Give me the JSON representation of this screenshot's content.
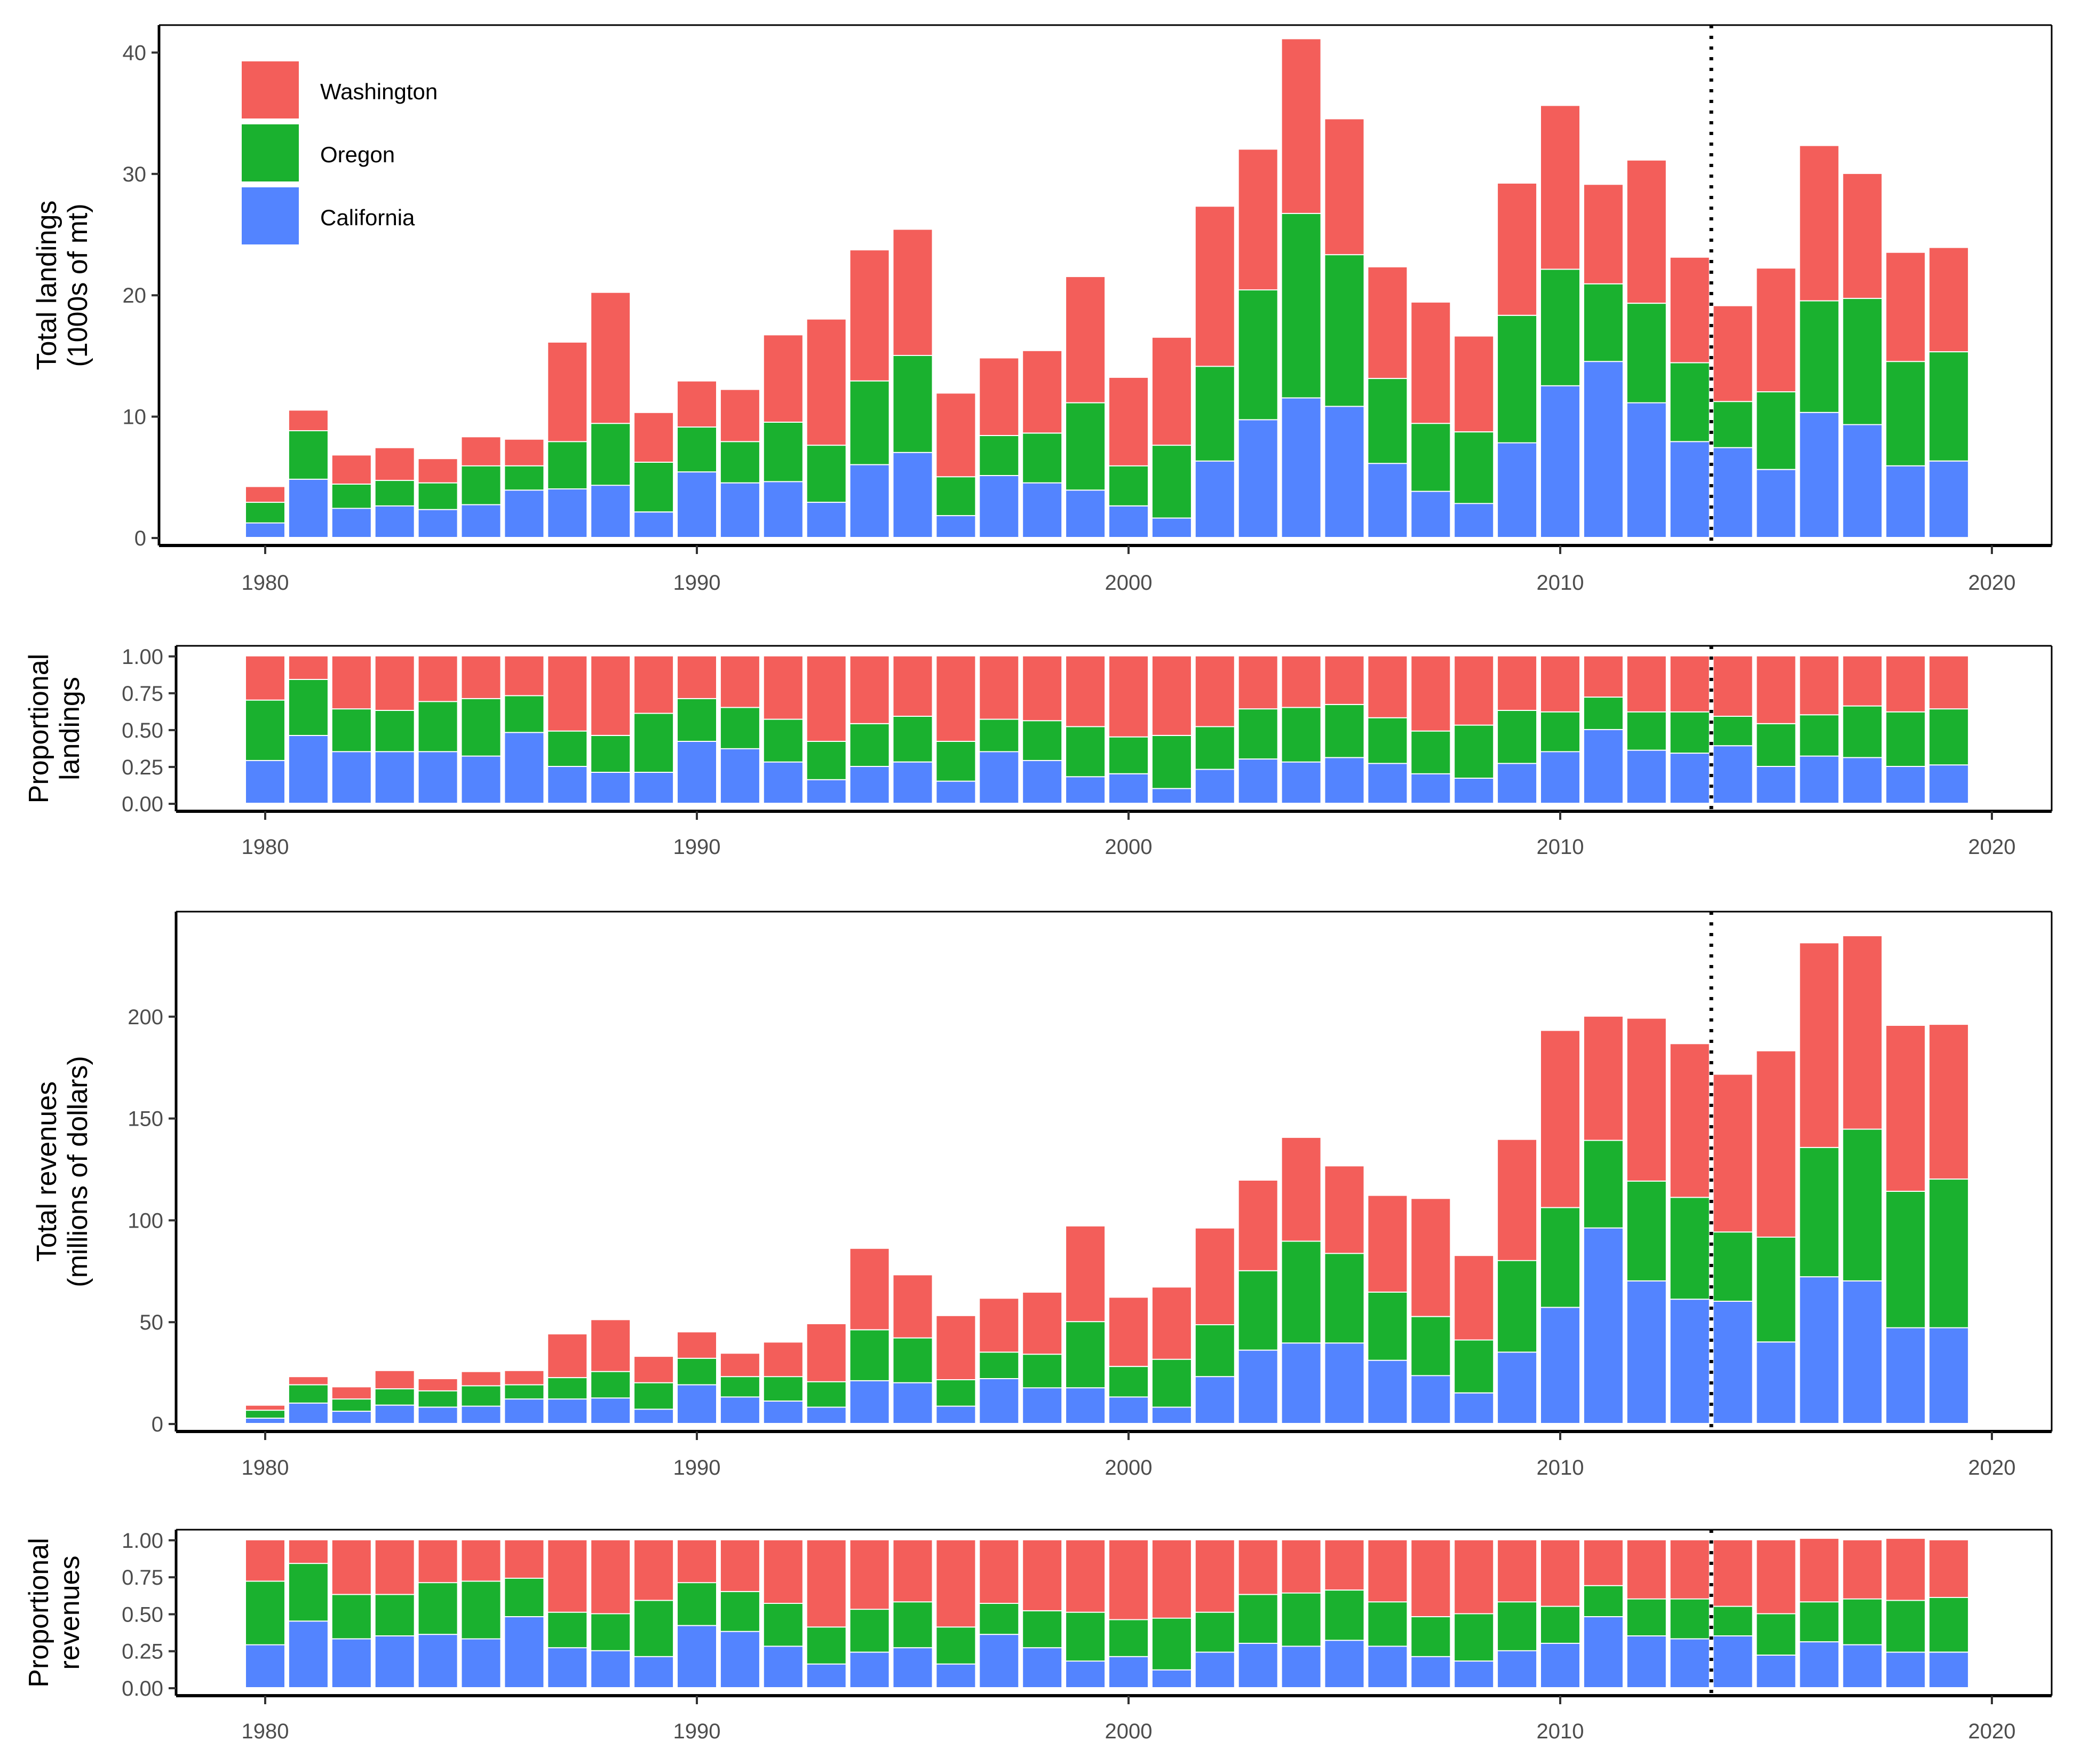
{
  "chart_data": [
    {
      "id": "landings",
      "type": "bar",
      "stacked": true,
      "ylabel_lines": [
        "Total landings",
        "(1000s of mt)"
      ],
      "xlabel": "",
      "ylim": [
        0,
        42
      ],
      "yticks": [
        0,
        10,
        20,
        30,
        40
      ],
      "ytick_labels": [
        "0",
        "10",
        "20",
        "30",
        "40"
      ],
      "xticks": [
        1980,
        1990,
        2000,
        2010,
        2020
      ],
      "xtick_labels": [
        "1980",
        "1990",
        "2000",
        "2010",
        "2020"
      ],
      "vline_x": 2013.5,
      "legend_position": "top-left",
      "categories": [
        1980,
        1981,
        1982,
        1983,
        1984,
        1985,
        1986,
        1987,
        1988,
        1989,
        1990,
        1991,
        1992,
        1993,
        1994,
        1995,
        1996,
        1997,
        1998,
        1999,
        2000,
        2001,
        2002,
        2003,
        2004,
        2005,
        2006,
        2007,
        2008,
        2009,
        2010,
        2011,
        2012,
        2013,
        2014,
        2015,
        2016,
        2017,
        2018,
        2019
      ],
      "series": [
        {
          "name": "California",
          "values": [
            1.2,
            4.8,
            2.4,
            2.6,
            2.3,
            2.7,
            3.9,
            4.0,
            4.3,
            2.1,
            5.4,
            4.5,
            4.6,
            2.9,
            6.0,
            7.0,
            1.8,
            5.1,
            4.5,
            3.9,
            2.6,
            1.6,
            6.3,
            9.7,
            11.5,
            10.8,
            6.1,
            3.8,
            2.8,
            7.8,
            12.5,
            14.5,
            11.1,
            7.9,
            7.4,
            5.6,
            10.3,
            9.3,
            5.9,
            6.3
          ]
        },
        {
          "name": "Oregon",
          "values": [
            1.7,
            4.0,
            2.0,
            2.1,
            2.2,
            3.2,
            2.0,
            3.9,
            5.1,
            4.1,
            3.7,
            3.4,
            4.9,
            4.7,
            6.9,
            8.0,
            3.2,
            3.3,
            4.1,
            7.2,
            3.3,
            6.0,
            7.8,
            10.7,
            15.2,
            12.5,
            7.0,
            5.6,
            5.9,
            10.5,
            9.6,
            6.4,
            8.2,
            6.5,
            3.8,
            6.4,
            9.2,
            10.4,
            8.6,
            9.0
          ]
        },
        {
          "name": "Washington",
          "values": [
            1.3,
            1.7,
            2.4,
            2.7,
            2.0,
            2.4,
            2.2,
            8.2,
            10.8,
            4.1,
            3.8,
            4.3,
            7.2,
            10.4,
            10.8,
            10.4,
            6.9,
            6.4,
            6.8,
            10.4,
            7.3,
            8.9,
            13.2,
            11.6,
            14.4,
            11.2,
            9.2,
            10.0,
            7.9,
            10.9,
            13.5,
            8.2,
            11.8,
            8.7,
            7.9,
            10.2,
            12.8,
            10.3,
            9.0,
            8.6
          ]
        }
      ]
    },
    {
      "id": "proportional-landings",
      "type": "bar",
      "stacked": true,
      "ylabel_lines": [
        "Proportional",
        "landings"
      ],
      "xlabel": "",
      "ylim": [
        0,
        1.05
      ],
      "yticks": [
        0,
        0.25,
        0.5,
        0.75,
        1.0
      ],
      "ytick_labels": [
        "0.00",
        "0.25",
        "0.50",
        "0.75",
        "1.00"
      ],
      "xticks": [
        1980,
        1990,
        2000,
        2010,
        2020
      ],
      "xtick_labels": [
        "1980",
        "1990",
        "2000",
        "2010",
        "2020"
      ],
      "vline_x": 2013.5,
      "categories": [
        1980,
        1981,
        1982,
        1983,
        1984,
        1985,
        1986,
        1987,
        1988,
        1989,
        1990,
        1991,
        1992,
        1993,
        1994,
        1995,
        1996,
        1997,
        1998,
        1999,
        2000,
        2001,
        2002,
        2003,
        2004,
        2005,
        2006,
        2007,
        2008,
        2009,
        2010,
        2011,
        2012,
        2013,
        2014,
        2015,
        2016,
        2017,
        2018,
        2019
      ],
      "series": [
        {
          "name": "California",
          "values": [
            0.29,
            0.46,
            0.35,
            0.35,
            0.35,
            0.32,
            0.48,
            0.25,
            0.21,
            0.21,
            0.42,
            0.37,
            0.28,
            0.16,
            0.25,
            0.28,
            0.15,
            0.35,
            0.29,
            0.18,
            0.2,
            0.1,
            0.23,
            0.3,
            0.28,
            0.31,
            0.27,
            0.2,
            0.17,
            0.27,
            0.35,
            0.5,
            0.36,
            0.34,
            0.39,
            0.25,
            0.32,
            0.31,
            0.25,
            0.26
          ]
        },
        {
          "name": "Oregon",
          "values": [
            0.41,
            0.38,
            0.29,
            0.28,
            0.34,
            0.39,
            0.25,
            0.24,
            0.25,
            0.4,
            0.29,
            0.28,
            0.29,
            0.26,
            0.29,
            0.31,
            0.27,
            0.22,
            0.27,
            0.34,
            0.25,
            0.36,
            0.29,
            0.34,
            0.37,
            0.36,
            0.31,
            0.29,
            0.36,
            0.36,
            0.27,
            0.22,
            0.26,
            0.28,
            0.2,
            0.29,
            0.28,
            0.35,
            0.37,
            0.38
          ]
        },
        {
          "name": "Washington",
          "values": [
            0.3,
            0.16,
            0.36,
            0.37,
            0.31,
            0.29,
            0.27,
            0.51,
            0.54,
            0.39,
            0.29,
            0.35,
            0.43,
            0.58,
            0.46,
            0.41,
            0.58,
            0.43,
            0.44,
            0.48,
            0.55,
            0.54,
            0.48,
            0.36,
            0.35,
            0.33,
            0.42,
            0.51,
            0.47,
            0.37,
            0.38,
            0.28,
            0.38,
            0.38,
            0.41,
            0.46,
            0.4,
            0.34,
            0.38,
            0.36
          ]
        }
      ]
    },
    {
      "id": "revenues",
      "type": "bar",
      "stacked": true,
      "ylabel_lines": [
        "Total revenues",
        "(millions of dollars)"
      ],
      "xlabel": "",
      "ylim": [
        0,
        250
      ],
      "yticks": [
        0,
        50,
        100,
        150,
        200
      ],
      "ytick_labels": [
        "0",
        "50",
        "100",
        "150",
        "200"
      ],
      "xticks": [
        1980,
        1990,
        2000,
        2010,
        2020
      ],
      "xtick_labels": [
        "1980",
        "1990",
        "2000",
        "2010",
        "2020"
      ],
      "vline_x": 2013.5,
      "categories": [
        1980,
        1981,
        1982,
        1983,
        1984,
        1985,
        1986,
        1987,
        1988,
        1989,
        1990,
        1991,
        1992,
        1993,
        1994,
        1995,
        1996,
        1997,
        1998,
        1999,
        2000,
        2001,
        2002,
        2003,
        2004,
        2005,
        2006,
        2007,
        2008,
        2009,
        2010,
        2011,
        2012,
        2013,
        2014,
        2015,
        2016,
        2017,
        2018,
        2019
      ],
      "series": [
        {
          "name": "California",
          "values": [
            2.6,
            10.0,
            6.0,
            9.0,
            8.0,
            8.5,
            12.0,
            12.0,
            12.5,
            7.0,
            19.0,
            13.0,
            11.0,
            8.0,
            21.0,
            20.0,
            8.5,
            22.0,
            17.5,
            17.5,
            13.0,
            8.0,
            23.0,
            36.0,
            39.5,
            39.5,
            31.0,
            23.5,
            15.0,
            35.0,
            57.0,
            96.0,
            70.0,
            61.0,
            60.0,
            40.0,
            72.0,
            70.0,
            47.0,
            47.0
          ]
        },
        {
          "name": "Oregon",
          "values": [
            3.9,
            9.0,
            6.0,
            8.0,
            8.0,
            10.0,
            7.0,
            10.5,
            13.0,
            13.0,
            13.0,
            10.0,
            12.0,
            12.5,
            25.0,
            22.0,
            13.0,
            13.0,
            16.5,
            32.5,
            15.0,
            23.5,
            25.5,
            39.0,
            50.0,
            44.0,
            33.5,
            29.0,
            26.0,
            45.0,
            49.0,
            43.0,
            49.0,
            50.0,
            34.0,
            51.5,
            63.5,
            74.5,
            67.0,
            73.0
          ]
        },
        {
          "name": "Washington",
          "values": [
            2.5,
            4.0,
            6.0,
            9.0,
            6.0,
            7.0,
            7.0,
            21.5,
            25.5,
            13.0,
            13.0,
            11.5,
            17.0,
            28.5,
            40.0,
            31.0,
            31.5,
            26.5,
            30.5,
            47.0,
            34.0,
            35.5,
            47.5,
            44.5,
            51.0,
            43.0,
            47.5,
            58.0,
            41.5,
            59.5,
            87.0,
            61.0,
            80.0,
            75.5,
            77.5,
            91.5,
            100.5,
            95.0,
            81.5,
            76.0
          ]
        }
      ]
    },
    {
      "id": "proportional-revenues",
      "type": "bar",
      "stacked": true,
      "ylabel_lines": [
        "Proportional",
        "revenues"
      ],
      "xlabel": "",
      "ylim": [
        0,
        1.05
      ],
      "yticks": [
        0,
        0.25,
        0.5,
        0.75,
        1.0
      ],
      "ytick_labels": [
        "0.00",
        "0.25",
        "0.50",
        "0.75",
        "1.00"
      ],
      "xticks": [
        1980,
        1990,
        2000,
        2010,
        2020
      ],
      "xtick_labels": [
        "1980",
        "1990",
        "2000",
        "2010",
        "2020"
      ],
      "vline_x": 2013.5,
      "categories": [
        1980,
        1981,
        1982,
        1983,
        1984,
        1985,
        1986,
        1987,
        1988,
        1989,
        1990,
        1991,
        1992,
        1993,
        1994,
        1995,
        1996,
        1997,
        1998,
        1999,
        2000,
        2001,
        2002,
        2003,
        2004,
        2005,
        2006,
        2007,
        2008,
        2009,
        2010,
        2011,
        2012,
        2013,
        2014,
        2015,
        2016,
        2017,
        2018,
        2019
      ],
      "series": [
        {
          "name": "California",
          "values": [
            0.29,
            0.45,
            0.33,
            0.35,
            0.36,
            0.33,
            0.48,
            0.27,
            0.25,
            0.21,
            0.42,
            0.38,
            0.28,
            0.16,
            0.24,
            0.27,
            0.16,
            0.36,
            0.27,
            0.18,
            0.21,
            0.12,
            0.24,
            0.3,
            0.28,
            0.32,
            0.28,
            0.21,
            0.18,
            0.25,
            0.3,
            0.48,
            0.35,
            0.33,
            0.35,
            0.22,
            0.31,
            0.29,
            0.24,
            0.24
          ]
        },
        {
          "name": "Oregon",
          "values": [
            0.43,
            0.39,
            0.3,
            0.28,
            0.35,
            0.39,
            0.26,
            0.24,
            0.25,
            0.38,
            0.29,
            0.27,
            0.29,
            0.25,
            0.29,
            0.31,
            0.25,
            0.21,
            0.25,
            0.33,
            0.25,
            0.35,
            0.27,
            0.33,
            0.36,
            0.34,
            0.3,
            0.27,
            0.32,
            0.33,
            0.25,
            0.21,
            0.25,
            0.27,
            0.2,
            0.28,
            0.27,
            0.31,
            0.35,
            0.37
          ]
        },
        {
          "name": "Washington",
          "values": [
            0.28,
            0.16,
            0.37,
            0.37,
            0.29,
            0.28,
            0.26,
            0.49,
            0.5,
            0.41,
            0.29,
            0.35,
            0.43,
            0.59,
            0.47,
            0.42,
            0.59,
            0.43,
            0.48,
            0.49,
            0.54,
            0.53,
            0.49,
            0.37,
            0.36,
            0.34,
            0.42,
            0.52,
            0.5,
            0.42,
            0.45,
            0.31,
            0.4,
            0.4,
            0.45,
            0.5,
            0.43,
            0.4,
            0.42,
            0.39
          ]
        }
      ]
    }
  ],
  "legend": {
    "items": [
      {
        "name": "Washington",
        "color": "#F35E5A"
      },
      {
        "name": "Oregon",
        "color": "#1AB12F"
      },
      {
        "name": "California",
        "color": "#5384FF"
      }
    ]
  },
  "colors": {
    "Washington": "#F35E5A",
    "Oregon": "#1AB12F",
    "California": "#5384FF",
    "axis": "#000000",
    "tick_text": "#4d4d4d"
  }
}
